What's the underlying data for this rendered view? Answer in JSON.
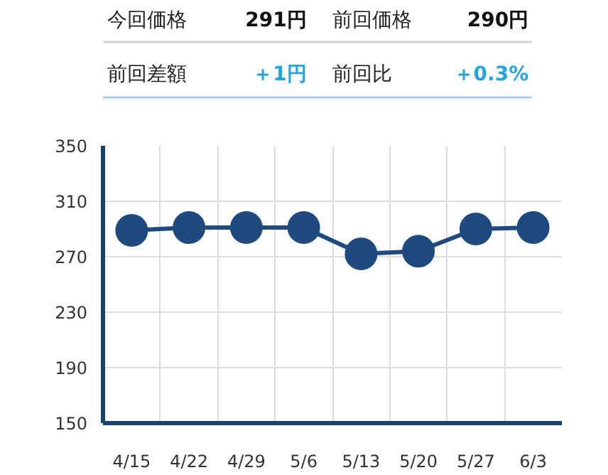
{
  "chart_data": [
    {
      "type": "other",
      "annotations": [
        "今回価格",
        "291円",
        "前回価格",
        "290円",
        "前回差額",
        "＋1円",
        "前回比",
        "＋0.3%"
      ]
    },
    {
      "type": "line",
      "categories": [
        "4/15",
        "4/22",
        "4/29",
        "5/6",
        "5/13",
        "5/20",
        "5/27",
        "6/3"
      ],
      "series": [
        {
          "color": "#1f4a7f",
          "values": [
            289,
            291,
            291,
            291,
            272,
            274,
            290,
            291
          ]
        }
      ],
      "ylim": [
        150,
        350
      ],
      "yticks": [
        150,
        190,
        230,
        270,
        310,
        350
      ],
      "grid": true,
      "marker": "circle",
      "line_style": "solid"
    }
  ]
}
